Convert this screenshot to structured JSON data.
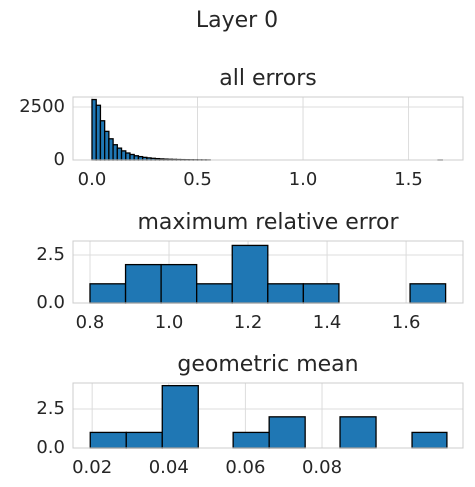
{
  "title": "Layer 0",
  "chart_data": [
    {
      "type": "histogram",
      "title": "all errors",
      "color": "#1f77b4",
      "grid": true,
      "bins": [
        0,
        0.02,
        0.04,
        0.06,
        0.08,
        0.1,
        0.12,
        0.14,
        0.16,
        0.18,
        0.2,
        0.22,
        0.24,
        0.26,
        0.28,
        0.3,
        0.32,
        0.34,
        0.36,
        0.38,
        0.4,
        0.42,
        0.44,
        0.46,
        0.48,
        0.5,
        0.52,
        0.54,
        0.56,
        0.58,
        0.6,
        0.62,
        0.64,
        0.66,
        0.68,
        0.7,
        0.72,
        0.74,
        0.76,
        0.78,
        0.8,
        0.82,
        0.84,
        0.86,
        0.88,
        0.9,
        0.92,
        0.94,
        0.96,
        0.98,
        1,
        1.02,
        1.04,
        1.06,
        1.08,
        1.1,
        1.12,
        1.14,
        1.16,
        1.18,
        1.2,
        1.22,
        1.24,
        1.26,
        1.28,
        1.3,
        1.32,
        1.34,
        1.36,
        1.38,
        1.4,
        1.42,
        1.44,
        1.46,
        1.48,
        1.5,
        1.52,
        1.54,
        1.56,
        1.58,
        1.6,
        1.62,
        1.64,
        1.66
      ],
      "counts": [
        2850,
        2580,
        1850,
        1350,
        1000,
        720,
        560,
        430,
        330,
        260,
        200,
        160,
        125,
        100,
        80,
        65,
        52,
        42,
        34,
        28,
        22,
        18,
        15,
        12,
        10,
        8,
        6,
        5,
        0,
        0,
        0,
        0,
        0,
        0,
        0,
        0,
        0,
        0,
        0,
        0,
        0,
        0,
        0,
        0,
        0,
        0,
        0,
        0,
        0,
        0,
        0,
        0,
        0,
        0,
        0,
        0,
        0,
        0,
        0,
        0,
        0,
        0,
        0,
        0,
        0,
        0,
        0,
        0,
        0,
        0,
        0,
        0,
        0,
        0,
        0,
        0,
        0,
        0,
        0,
        0,
        0,
        0,
        1
      ],
      "xlim": [
        -0.09,
        1.758
      ],
      "ylim": [
        0,
        2970
      ],
      "xticks": [
        {
          "value": 0,
          "label": "0.0"
        },
        0.5,
        {
          "value": 1,
          "label": "1.0"
        },
        1.5
      ],
      "yticks": [
        0,
        2500
      ]
    },
    {
      "type": "histogram",
      "title": "maximum relative error",
      "color": "#1f77b4",
      "grid": true,
      "bins": [
        0.8,
        0.89,
        0.98,
        1.07,
        1.16,
        1.25,
        1.34,
        1.43,
        1.52,
        1.61,
        1.7
      ],
      "counts": [
        1,
        2,
        2,
        1,
        3,
        1,
        1,
        0,
        0,
        1
      ],
      "xlim": [
        0.757,
        1.744
      ],
      "ylim": [
        0,
        3.23
      ],
      "xticks": [
        0.8,
        {
          "value": 1,
          "label": "1.0"
        },
        1.2,
        1.4,
        1.6
      ],
      "yticks": [
        {
          "value": 0,
          "label": "0.0"
        },
        2.5
      ]
    },
    {
      "type": "histogram",
      "title": "geometric mean",
      "color": "#1f77b4",
      "grid": true,
      "bins": [
        0.0195,
        0.0289,
        0.0383,
        0.0477,
        0.0568,
        0.0662,
        0.0756,
        0.0847,
        0.0941,
        0.1035,
        0.1126
      ],
      "counts": [
        1,
        1,
        4,
        0,
        1,
        2,
        0,
        2,
        0,
        1
      ],
      "xlim": [
        0.015,
        0.1168
      ],
      "ylim": [
        0,
        4.17
      ],
      "xticks": [
        0.02,
        0.04,
        0.06,
        0.08
      ],
      "yticks": [
        {
          "value": 0,
          "label": "0.0"
        },
        2.5
      ]
    }
  ]
}
